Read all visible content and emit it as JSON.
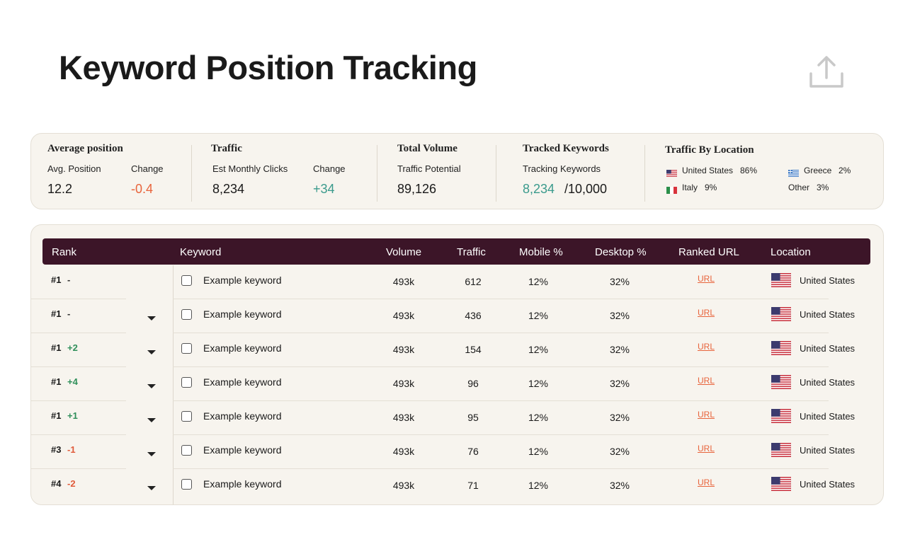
{
  "header": {
    "title": "Keyword Position Tracking"
  },
  "summary": [
    {
      "title": "Average position",
      "fields": [
        {
          "label": "Avg. Position",
          "value": "12.2"
        },
        {
          "label": "Change",
          "value": "-0.4"
        }
      ]
    },
    {
      "title": "Traffic",
      "fields": [
        {
          "label": "Est Monthly Clicks",
          "value": "8,234"
        },
        {
          "label": "Change",
          "value": "+34"
        }
      ]
    },
    {
      "title": "Total Volume",
      "fields": [
        {
          "label": "Traffic Potential",
          "value": "89,126"
        }
      ]
    },
    {
      "title": "Tracked Keywords",
      "fields": [
        {
          "label": "Tracking Keywords",
          "value": "8,234",
          "total": "/10,000"
        }
      ]
    }
  ],
  "locations": {
    "title": "Traffic By Location",
    "items": [
      {
        "name": "United States",
        "share": "86%"
      },
      {
        "name": "Greece",
        "share": "2%"
      },
      {
        "name": "Italy",
        "share": "9%"
      },
      {
        "name": "Other",
        "share": "3%"
      }
    ]
  },
  "table": {
    "columns": [
      "Rank",
      "Keyword",
      "Volume",
      "Traffic",
      "Mobile %",
      "Desktop %",
      "Ranked URL",
      "Location"
    ],
    "rows": [
      [
        "#1",
        "-",
        "Example keyword",
        "493k",
        "612",
        "12%",
        "32%",
        "URL",
        "United States"
      ],
      [
        "#1",
        "-",
        "Example keyword",
        "493k",
        "436",
        "12%",
        "32%",
        "URL",
        "United States"
      ],
      [
        "#1",
        "+2",
        "Example keyword",
        "493k",
        "154",
        "12%",
        "32%",
        "URL",
        "United States"
      ],
      [
        "#1",
        "+4",
        "Example keyword",
        "493k",
        "96",
        "12%",
        "32%",
        "URL",
        "United States"
      ],
      [
        "#1",
        "+1",
        "Example keyword",
        "493k",
        "95",
        "12%",
        "32%",
        "URL",
        "United States"
      ],
      [
        "#3",
        "-1",
        "Example keyword",
        "493k",
        "76",
        "12%",
        "32%",
        "URL",
        "United States"
      ],
      [
        "#4",
        "-2",
        "Example keyword",
        "493k",
        "71",
        "12%",
        "32%",
        "URL",
        "United States"
      ]
    ]
  }
}
